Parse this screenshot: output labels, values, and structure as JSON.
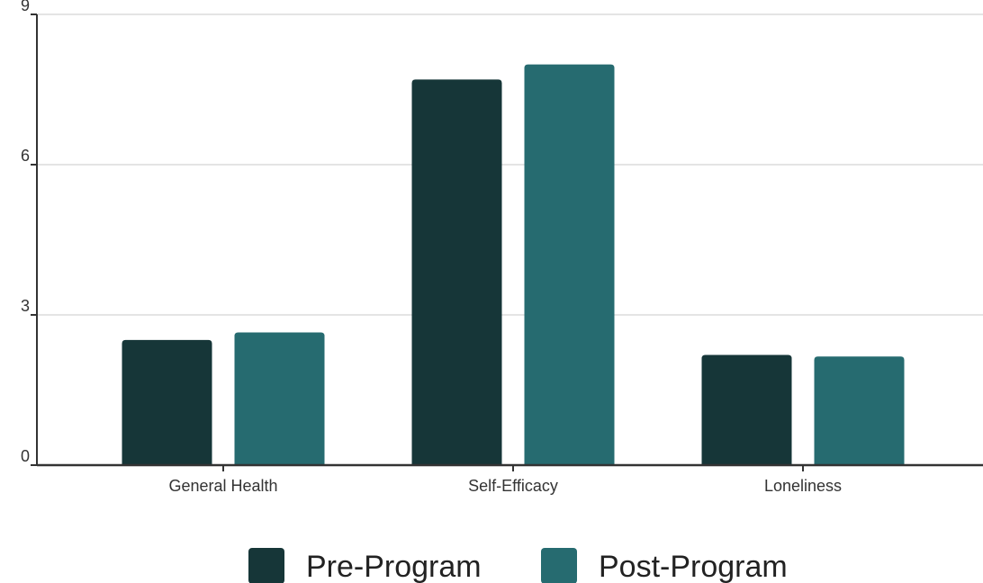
{
  "chart_data": {
    "type": "bar",
    "title": "",
    "xlabel": "",
    "ylabel": "",
    "categories": [
      "General Health",
      "Self-Efficacy",
      "Loneliness"
    ],
    "series": [
      {
        "name": "Pre-Program",
        "values": [
          2.5,
          7.7,
          2.2
        ],
        "color": "#163638"
      },
      {
        "name": "Post-Program",
        "values": [
          2.65,
          8.0,
          2.17
        ],
        "color": "#266b70"
      }
    ],
    "ylim": [
      0,
      9
    ],
    "yticks": [
      "0",
      "3",
      "6",
      "9"
    ],
    "grid": true,
    "legend_position": "bottom-center"
  }
}
